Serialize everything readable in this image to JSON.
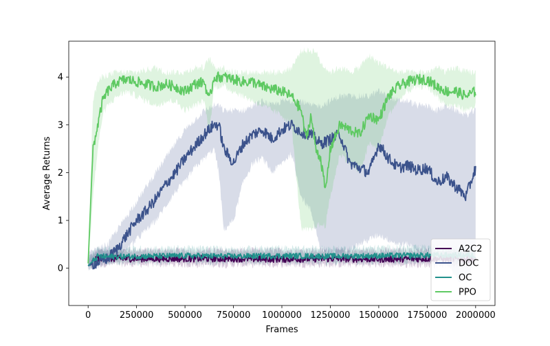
{
  "chart_data": {
    "type": "line",
    "title": "",
    "xlabel": "Frames",
    "ylabel": "Average Returns",
    "xlim": [
      -100000,
      2100000
    ],
    "ylim": [
      -0.78,
      4.75
    ],
    "x_ticks": [
      0,
      250000,
      500000,
      750000,
      1000000,
      1250000,
      1500000,
      1750000,
      2000000
    ],
    "x_tick_labels": [
      "0",
      "250000",
      "500000",
      "750000",
      "1000000",
      "1250000",
      "1500000",
      "1750000",
      "2000000"
    ],
    "y_ticks": [
      0,
      1,
      2,
      3,
      4
    ],
    "y_tick_labels": [
      "0",
      "1",
      "2",
      "3",
      "4"
    ],
    "grid": false,
    "legend_position": "lower right",
    "series": [
      {
        "name": "A2C2",
        "color": "#440154",
        "x": [
          0,
          50000,
          100000,
          250000,
          500000,
          750000,
          1000000,
          1250000,
          1500000,
          1750000,
          2000000
        ],
        "mean": [
          0.05,
          0.22,
          0.2,
          0.2,
          0.2,
          0.2,
          0.19,
          0.2,
          0.19,
          0.2,
          0.19
        ],
        "band_low": [
          0.0,
          0.08,
          0.08,
          0.08,
          0.07,
          0.07,
          0.07,
          0.07,
          0.07,
          0.07,
          0.07
        ],
        "band_high": [
          0.2,
          0.38,
          0.37,
          0.38,
          0.37,
          0.37,
          0.37,
          0.37,
          0.37,
          0.37,
          0.37
        ]
      },
      {
        "name": "DOC",
        "color": "#3b528b",
        "x": [
          0,
          100000,
          150000,
          200000,
          250000,
          300000,
          350000,
          400000,
          450000,
          500000,
          550000,
          600000,
          650000,
          675000,
          700000,
          750000,
          800000,
          850000,
          900000,
          950000,
          1000000,
          1050000,
          1100000,
          1150000,
          1200000,
          1250000,
          1300000,
          1350000,
          1400000,
          1450000,
          1500000,
          1550000,
          1600000,
          1650000,
          1700000,
          1750000,
          1800000,
          1850000,
          1900000,
          1950000,
          2000000
        ],
        "mean": [
          0.05,
          0.2,
          0.4,
          0.7,
          1.0,
          1.2,
          1.45,
          1.75,
          2.0,
          2.3,
          2.55,
          2.8,
          3.0,
          3.0,
          2.5,
          2.2,
          2.6,
          2.8,
          2.9,
          2.7,
          2.9,
          3.0,
          2.85,
          2.8,
          2.6,
          2.7,
          2.8,
          2.2,
          2.1,
          2.0,
          2.6,
          2.3,
          2.1,
          2.15,
          2.05,
          2.1,
          1.8,
          1.9,
          1.7,
          1.5,
          2.1
        ],
        "band_low": [
          0.0,
          0.1,
          0.2,
          0.4,
          0.6,
          0.8,
          1.0,
          1.3,
          1.6,
          1.8,
          2.1,
          2.3,
          2.5,
          2.0,
          0.8,
          1.0,
          1.8,
          2.2,
          2.3,
          2.0,
          2.2,
          2.4,
          1.5,
          1.2,
          0.4,
          0.3,
          0.3,
          0.4,
          0.5,
          0.6,
          0.7,
          0.6,
          0.5,
          0.5,
          0.4,
          0.4,
          0.2,
          0.1,
          -0.2,
          -0.3,
          0.3
        ],
        "band_high": [
          0.3,
          0.5,
          0.8,
          1.1,
          1.4,
          1.7,
          2.0,
          2.3,
          2.6,
          2.9,
          3.1,
          3.3,
          3.4,
          3.4,
          3.3,
          3.3,
          3.3,
          3.4,
          3.5,
          3.4,
          3.5,
          3.5,
          3.5,
          3.4,
          3.4,
          3.5,
          3.6,
          3.6,
          3.6,
          3.6,
          3.7,
          3.6,
          3.5,
          3.5,
          3.4,
          3.4,
          3.3,
          3.4,
          3.3,
          3.2,
          3.3
        ]
      },
      {
        "name": "OC",
        "color": "#21918c",
        "x": [
          0,
          50000,
          100000,
          250000,
          500000,
          750000,
          1000000,
          1250000,
          1500000,
          1750000,
          2000000
        ],
        "mean": [
          0.05,
          0.25,
          0.24,
          0.25,
          0.26,
          0.25,
          0.26,
          0.25,
          0.26,
          0.27,
          0.27
        ],
        "band_low": [
          0.0,
          0.12,
          0.12,
          0.12,
          0.13,
          0.12,
          0.13,
          0.12,
          0.13,
          0.14,
          0.14
        ],
        "band_high": [
          0.2,
          0.4,
          0.4,
          0.41,
          0.42,
          0.41,
          0.42,
          0.41,
          0.43,
          0.43,
          0.43
        ]
      },
      {
        "name": "PPO",
        "color": "#5ec962",
        "x": [
          0,
          25000,
          50000,
          75000,
          100000,
          150000,
          200000,
          250000,
          300000,
          350000,
          400000,
          450000,
          500000,
          550000,
          600000,
          625000,
          650000,
          700000,
          750000,
          800000,
          850000,
          900000,
          950000,
          1000000,
          1050000,
          1100000,
          1125000,
          1150000,
          1175000,
          1200000,
          1225000,
          1250000,
          1300000,
          1350000,
          1400000,
          1450000,
          1500000,
          1550000,
          1600000,
          1650000,
          1700000,
          1750000,
          1800000,
          1850000,
          1900000,
          1950000,
          2000000
        ],
        "mean": [
          0.1,
          2.5,
          3.0,
          3.5,
          3.7,
          3.9,
          3.95,
          3.9,
          3.85,
          3.8,
          3.85,
          3.8,
          3.7,
          3.85,
          3.9,
          3.5,
          4.0,
          4.0,
          3.95,
          3.9,
          3.9,
          3.8,
          3.75,
          3.7,
          3.6,
          3.3,
          2.7,
          3.2,
          2.5,
          2.3,
          1.6,
          2.5,
          3.0,
          2.9,
          2.8,
          3.2,
          3.1,
          3.6,
          3.8,
          3.9,
          3.95,
          3.95,
          3.8,
          3.7,
          3.7,
          3.6,
          3.7
        ],
        "band_low": [
          0.0,
          1.5,
          2.5,
          3.2,
          3.4,
          3.6,
          3.7,
          3.6,
          3.5,
          3.4,
          3.5,
          3.5,
          3.3,
          3.4,
          3.5,
          2.8,
          3.8,
          3.8,
          3.7,
          3.6,
          3.5,
          3.4,
          3.3,
          3.2,
          3.0,
          0.8,
          0.8,
          0.8,
          0.9,
          0.9,
          0.9,
          1.5,
          2.4,
          2.2,
          2.0,
          2.6,
          2.5,
          3.2,
          3.5,
          3.7,
          3.8,
          3.8,
          3.6,
          3.4,
          3.4,
          3.3,
          3.4
        ],
        "band_high": [
          0.3,
          3.5,
          3.9,
          4.0,
          4.05,
          4.1,
          4.1,
          4.1,
          4.15,
          4.2,
          4.1,
          4.1,
          4.1,
          4.2,
          4.2,
          4.4,
          4.2,
          4.2,
          4.1,
          4.1,
          4.1,
          4.1,
          4.1,
          4.1,
          4.2,
          4.55,
          4.55,
          4.55,
          4.55,
          4.3,
          4.2,
          4.1,
          4.2,
          4.1,
          4.2,
          4.45,
          4.3,
          4.2,
          4.1,
          4.1,
          4.1,
          4.1,
          4.2,
          4.1,
          4.2,
          4.1,
          4.1
        ]
      }
    ]
  }
}
